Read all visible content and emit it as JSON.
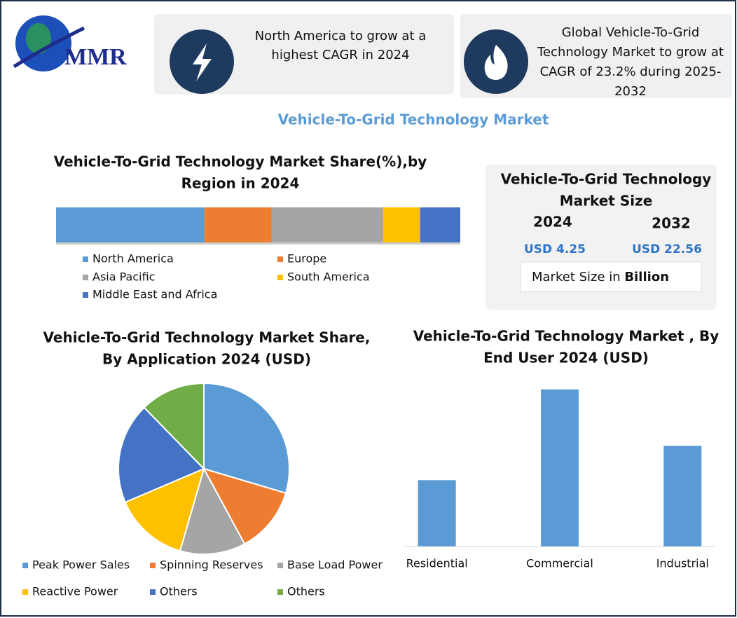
{
  "logo": "MMR",
  "highlights": [
    [
      "North America to grow at a",
      "highest CAGR in 2024"
    ],
    [
      "Global Vehicle-To-Grid",
      "Technology Market to grow at",
      "CAGR of 23.2% during 2025-",
      "2032"
    ]
  ],
  "title": "Vehicle-To-Grid Technology Market",
  "market_size": {
    "title": [
      "Vehicle-To-Grid Technology",
      "Market Size"
    ],
    "years": [
      "2024",
      "2032"
    ],
    "values": [
      "USD 4.25",
      "USD 22.56"
    ],
    "unit_prefix": "Market Size in",
    "unit": "Billion"
  },
  "chart_data": [
    {
      "type": "bar",
      "stacked": true,
      "orientation": "horizontal",
      "title": [
        "Vehicle-To-Grid Technology Market Share(%),by",
        "Region in 2024"
      ],
      "xlim": [
        0,
        100
      ],
      "series": [
        {
          "name": "North America",
          "color": "#5b9bd5",
          "values": [
            36.7
          ]
        },
        {
          "name": "Europe",
          "color": "#ed7d31",
          "values": [
            16.6
          ]
        },
        {
          "name": "Asia Pacific",
          "color": "#a5a5a5",
          "values": [
            27.6
          ]
        },
        {
          "name": "South America",
          "color": "#ffc000",
          "values": [
            9.2
          ]
        },
        {
          "name": "Middle East and Africa",
          "color": "#4472c4",
          "values": [
            9.9
          ]
        }
      ]
    },
    {
      "type": "pie",
      "title": [
        "Vehicle-To-Grid Technology Market Share,",
        "By Application 2024  (USD)"
      ],
      "categories": [
        "Peak Power Sales",
        "Spinning Reserves",
        "Base Load Power",
        "Reactive Power",
        "Others",
        "Others"
      ],
      "values": [
        29.6,
        12.5,
        12.4,
        14.1,
        19.1,
        12.3
      ],
      "colors": [
        "#5b9bd5",
        "#ed7d31",
        "#a5a5a5",
        "#ffc000",
        "#4472c4",
        "#70ad47"
      ]
    },
    {
      "type": "bar",
      "title": [
        "Vehicle-To-Grid Technology Market , By",
        "End User  2024  (USD)"
      ],
      "categories": [
        "Residential",
        "Commercial",
        "Industrial"
      ],
      "values": [
        0.87,
        2.06,
        1.32
      ],
      "color": "#5b9bd5",
      "ylim": [
        0,
        2.25
      ]
    }
  ]
}
